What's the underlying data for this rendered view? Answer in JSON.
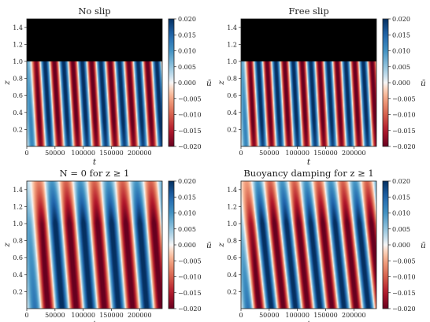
{
  "figure": {
    "colormap": "RdBu",
    "cmap_low_color": "#67001f",
    "cmap_mid_color": "#f7f7f7",
    "cmap_high_color": "#053061",
    "mask_color": "#000000"
  },
  "chart_data": [
    {
      "type": "heatmap",
      "title": "No slip",
      "xlabel": "t",
      "ylabel": "z",
      "xlim": [
        0,
        240000
      ],
      "ylim": [
        0,
        1.5
      ],
      "xticks": [
        0,
        50000,
        100000,
        150000,
        200000
      ],
      "yticks": [
        0.2,
        0.4,
        0.6,
        0.8,
        1.0,
        1.2,
        1.4
      ],
      "colorbar": {
        "label": "ū",
        "range": [
          -0.02,
          0.02
        ],
        "ticks": [
          -0.02,
          -0.015,
          -0.01,
          -0.005,
          0.0,
          0.005,
          0.01,
          0.015,
          0.02
        ]
      },
      "masked_region": {
        "z_from": 1.0,
        "z_to": 1.5,
        "color": "black"
      },
      "approx_period": 33000,
      "approx_phase_tilt_per_unit_z": 9000,
      "amplitude": 0.02
    },
    {
      "type": "heatmap",
      "title": "Free slip",
      "xlabel": "t",
      "ylabel": "z",
      "xlim": [
        0,
        240000
      ],
      "ylim": [
        0,
        1.5
      ],
      "xticks": [
        0,
        50000,
        100000,
        150000,
        200000
      ],
      "yticks": [
        0.2,
        0.4,
        0.6,
        0.8,
        1.0,
        1.2,
        1.4
      ],
      "colorbar": {
        "label": "ū",
        "range": [
          -0.02,
          0.02
        ],
        "ticks": [
          -0.02,
          -0.015,
          -0.01,
          -0.005,
          0.0,
          0.005,
          0.01,
          0.015,
          0.02
        ]
      },
      "masked_region": {
        "z_from": 1.0,
        "z_to": 1.5,
        "color": "black"
      },
      "approx_period": 31000,
      "approx_phase_tilt_per_unit_z": 8000,
      "amplitude": 0.02
    },
    {
      "type": "heatmap",
      "title": "N = 0 for z ≥ 1",
      "xlabel": "t",
      "ylabel": "z",
      "xlim": [
        0,
        240000
      ],
      "ylim": [
        0,
        1.5
      ],
      "xticks": [
        0,
        50000,
        100000,
        150000,
        200000
      ],
      "yticks": [
        0.2,
        0.4,
        0.6,
        0.8,
        1.0,
        1.2,
        1.4
      ],
      "colorbar": {
        "label": "ū",
        "range": [
          -0.02,
          0.02
        ],
        "ticks": [
          -0.02,
          -0.015,
          -0.01,
          -0.005,
          0.0,
          0.005,
          0.01,
          0.015,
          0.02
        ]
      },
      "approx_period": 50000,
      "approx_phase_tilt_per_unit_z": 12000,
      "amplitude": 0.02
    },
    {
      "type": "heatmap",
      "title": "Buoyancy damping for z ≥ 1",
      "xlabel": "t",
      "ylabel": "z",
      "xlim": [
        0,
        240000
      ],
      "ylim": [
        0,
        1.5
      ],
      "xticks": [
        0,
        50000,
        100000,
        150000,
        200000
      ],
      "yticks": [
        0.2,
        0.4,
        0.6,
        0.8,
        1.0,
        1.2,
        1.4
      ],
      "colorbar": {
        "label": "ū",
        "range": [
          -0.02,
          0.02
        ],
        "ticks": [
          -0.02,
          -0.015,
          -0.01,
          -0.005,
          0.0,
          0.005,
          0.01,
          0.015,
          0.02
        ]
      },
      "approx_period": 43000,
      "approx_phase_tilt_per_unit_z": 16000,
      "amplitude": 0.02
    }
  ]
}
